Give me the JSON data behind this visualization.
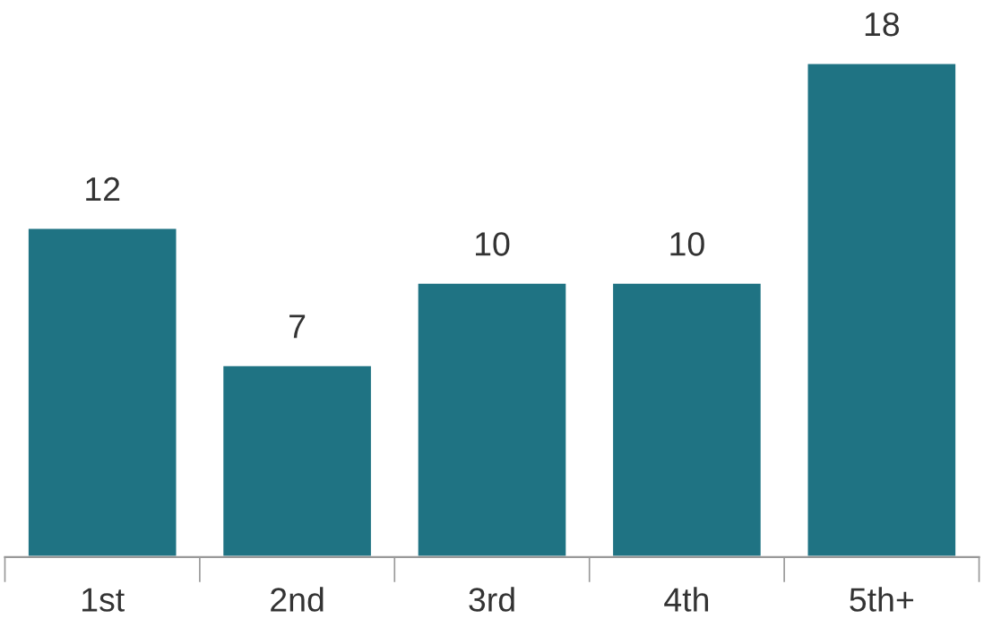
{
  "chart_data": {
    "type": "bar",
    "categories": [
      "1st",
      "2nd",
      "3rd",
      "4th",
      "5th+"
    ],
    "values": [
      12,
      7,
      10,
      10,
      18
    ],
    "color": "#1f7383",
    "data_labels": true,
    "grid": false
  }
}
